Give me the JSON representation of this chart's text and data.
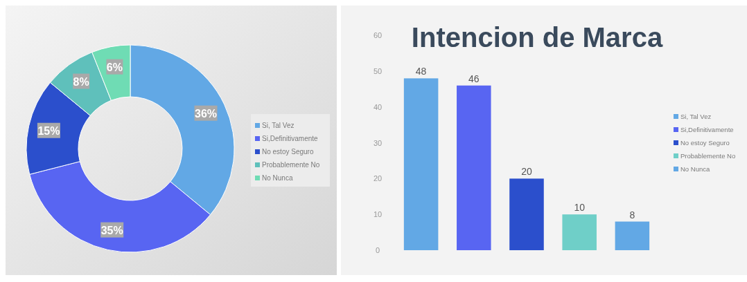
{
  "chart_data": [
    {
      "type": "donut",
      "categories": [
        "Si, Tal Vez",
        "Si,Definitivamente",
        "No estoy Seguro",
        "Probablemente No",
        "No Nunca"
      ],
      "values": [
        36,
        35,
        15,
        8,
        6
      ],
      "colors": [
        "#62a8e5",
        "#5865f2",
        "#2b4fcc",
        "#5fc0bb",
        "#6fdcb4"
      ],
      "value_labels": [
        "36%",
        "35%",
        "15%",
        "8%",
        "6%"
      ],
      "legend": "right"
    },
    {
      "type": "bar",
      "title": "Intencion de Marca",
      "categories": [
        null,
        null,
        null,
        null,
        null
      ],
      "stacked": true,
      "series": [
        {
          "name": "Si, Tal Vez",
          "color": "#62a8e5",
          "values": [
            48,
            null,
            null,
            null,
            null
          ]
        },
        {
          "name": "Si,Definitivamente",
          "color": "#5865f2",
          "values": [
            null,
            46,
            null,
            null,
            null
          ]
        },
        {
          "name": "No estoy Seguro",
          "color": "#2b4fcc",
          "values": [
            null,
            null,
            20,
            null,
            null
          ]
        },
        {
          "name": "Probablemente No",
          "color": "#6fcfc8",
          "values": [
            null,
            null,
            null,
            10,
            null
          ]
        },
        {
          "name": "No Nunca",
          "color": "#62a8e5",
          "values": [
            null,
            null,
            null,
            null,
            8
          ]
        }
      ],
      "ylim": [
        0,
        60
      ],
      "yticks": [
        0,
        10,
        20,
        30,
        40,
        50,
        60
      ],
      "tick_labels": "y",
      "data_labels": true,
      "legend": "right"
    }
  ]
}
